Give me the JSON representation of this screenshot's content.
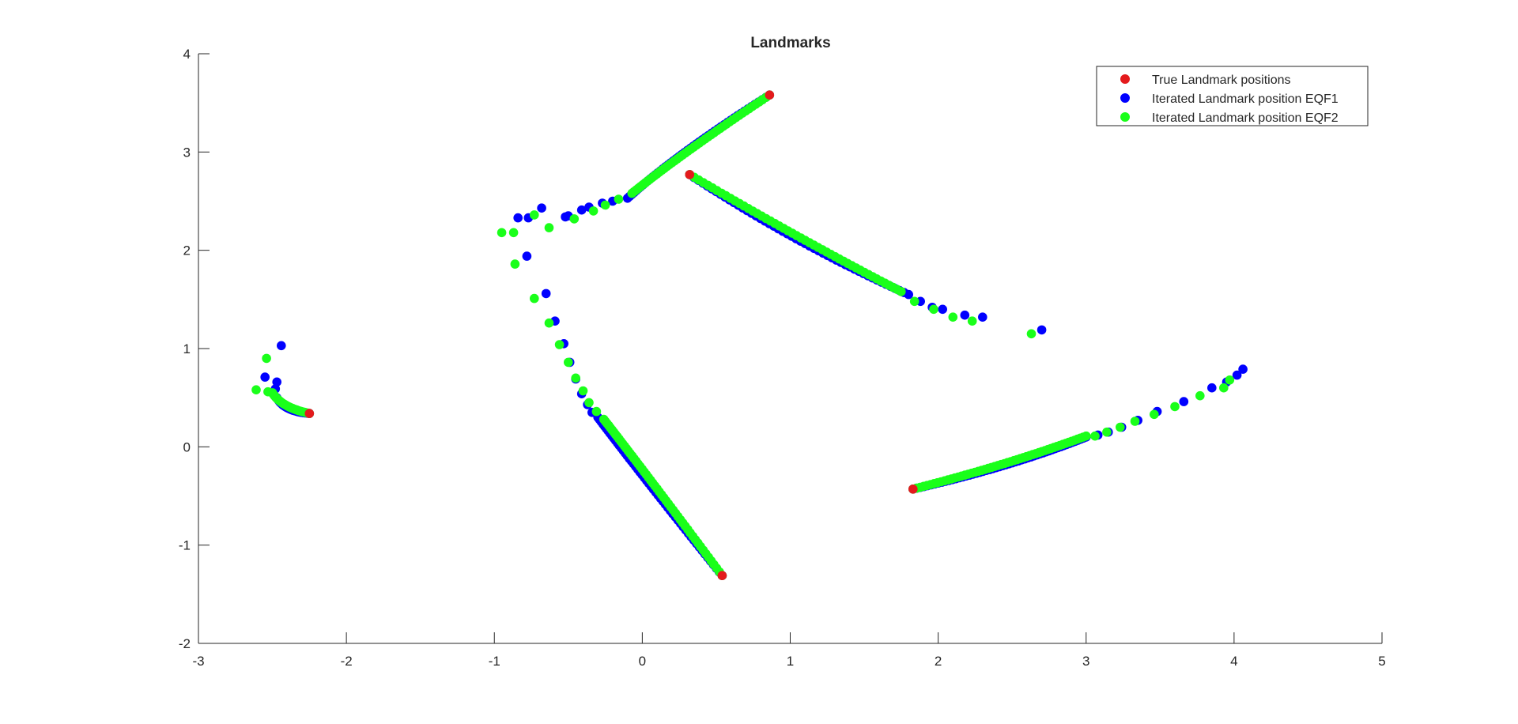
{
  "chart_data": {
    "type": "scatter",
    "title": "Landmarks",
    "xlabel": "",
    "ylabel": "",
    "xlim": [
      -3,
      5
    ],
    "ylim": [
      -2,
      4
    ],
    "x_ticks": [
      "-3",
      "-2",
      "-1",
      "0",
      "1",
      "2",
      "3",
      "4",
      "5"
    ],
    "y_ticks": [
      "-2",
      "-1",
      "0",
      "1",
      "2",
      "3",
      "4"
    ],
    "grid": false,
    "legend_position": "top-right",
    "colors": {
      "true": "#e41a1c",
      "eqf1": "#0000ff",
      "eqf2": "#1aff1a",
      "axis": "#262626"
    },
    "series": [
      {
        "key": "true",
        "name": "True Landmark positions",
        "points": [
          [
            0.86,
            3.58
          ],
          [
            0.32,
            2.77
          ],
          [
            0.54,
            -1.31
          ],
          [
            1.83,
            -0.43
          ],
          [
            -2.25,
            0.34
          ]
        ]
      },
      {
        "key": "eqf1",
        "name": "Iterated Landmark position EQF1",
        "curves": [
          {
            "from": [
              0.86,
              3.58
            ],
            "ctrl": [
              0.25,
              3.0
            ],
            "to": [
              -0.1,
              2.53
            ],
            "n": 50
          },
          {
            "from": [
              0.32,
              2.77
            ],
            "ctrl": [
              1.05,
              2.05
            ],
            "to": [
              1.8,
              1.55
            ],
            "n": 50
          },
          {
            "from": [
              0.54,
              -1.31
            ],
            "ctrl": [
              0.0,
              -0.3
            ],
            "to": [
              -0.3,
              0.3
            ],
            "n": 55
          },
          {
            "from": [
              1.83,
              -0.43
            ],
            "ctrl": [
              2.5,
              -0.2
            ],
            "to": [
              3.0,
              0.1
            ],
            "n": 55
          },
          {
            "from": [
              -2.25,
              0.34
            ],
            "ctrl": [
              -2.42,
              0.36
            ],
            "to": [
              -2.47,
              0.5
            ],
            "n": 25
          }
        ],
        "points": [
          [
            -0.5,
            2.35
          ],
          [
            -0.41,
            2.41
          ],
          [
            -0.36,
            2.44
          ],
          [
            -0.27,
            2.48
          ],
          [
            -0.2,
            2.5
          ],
          [
            -0.52,
            2.34
          ],
          [
            -0.68,
            2.43
          ],
          [
            -0.77,
            2.33
          ],
          [
            -0.84,
            2.33
          ],
          [
            -0.78,
            1.94
          ],
          [
            -0.65,
            1.56
          ],
          [
            -0.59,
            1.28
          ],
          [
            -0.53,
            1.05
          ],
          [
            -0.49,
            0.86
          ],
          [
            -0.45,
            0.69
          ],
          [
            -0.41,
            0.54
          ],
          [
            -0.37,
            0.43
          ],
          [
            -0.34,
            0.35
          ],
          [
            1.88,
            1.48
          ],
          [
            1.96,
            1.42
          ],
          [
            2.03,
            1.4
          ],
          [
            2.18,
            1.34
          ],
          [
            2.3,
            1.32
          ],
          [
            2.7,
            1.19
          ],
          [
            3.08,
            0.12
          ],
          [
            3.15,
            0.15
          ],
          [
            3.24,
            0.2
          ],
          [
            3.35,
            0.27
          ],
          [
            3.48,
            0.36
          ],
          [
            3.66,
            0.46
          ],
          [
            3.85,
            0.6
          ],
          [
            3.95,
            0.66
          ],
          [
            4.02,
            0.73
          ],
          [
            4.06,
            0.79
          ],
          [
            -2.44,
            1.03
          ],
          [
            -2.47,
            0.66
          ],
          [
            -2.48,
            0.59
          ],
          [
            -2.55,
            0.71
          ]
        ]
      },
      {
        "key": "eqf2",
        "name": "Iterated Landmark position EQF2",
        "curves": [
          {
            "from": [
              0.86,
              3.58
            ],
            "ctrl": [
              0.28,
              3.0
            ],
            "to": [
              -0.07,
              2.58
            ],
            "n": 50
          },
          {
            "from": [
              0.32,
              2.77
            ],
            "ctrl": [
              1.08,
              2.1
            ],
            "to": [
              1.75,
              1.58
            ],
            "n": 50
          },
          {
            "from": [
              0.54,
              -1.31
            ],
            "ctrl": [
              0.03,
              -0.28
            ],
            "to": [
              -0.26,
              0.28
            ],
            "n": 55
          },
          {
            "from": [
              1.83,
              -0.43
            ],
            "ctrl": [
              2.48,
              -0.18
            ],
            "to": [
              3.0,
              0.11
            ],
            "n": 55
          },
          {
            "from": [
              -2.25,
              0.34
            ],
            "ctrl": [
              -2.44,
              0.4
            ],
            "to": [
              -2.5,
              0.55
            ],
            "n": 25
          }
        ],
        "points": [
          [
            -0.46,
            2.32
          ],
          [
            -0.33,
            2.4
          ],
          [
            -0.25,
            2.46
          ],
          [
            -0.16,
            2.52
          ],
          [
            -0.63,
            2.23
          ],
          [
            -0.73,
            2.36
          ],
          [
            -0.87,
            2.18
          ],
          [
            -0.95,
            2.18
          ],
          [
            -0.86,
            1.86
          ],
          [
            -0.73,
            1.51
          ],
          [
            -0.63,
            1.26
          ],
          [
            -0.56,
            1.04
          ],
          [
            -0.5,
            0.86
          ],
          [
            -0.45,
            0.7
          ],
          [
            -0.4,
            0.57
          ],
          [
            -0.36,
            0.45
          ],
          [
            -0.31,
            0.36
          ],
          [
            1.84,
            1.48
          ],
          [
            1.97,
            1.4
          ],
          [
            2.1,
            1.32
          ],
          [
            2.23,
            1.28
          ],
          [
            2.63,
            1.15
          ],
          [
            3.06,
            0.11
          ],
          [
            3.14,
            0.15
          ],
          [
            3.23,
            0.2
          ],
          [
            3.33,
            0.26
          ],
          [
            3.46,
            0.33
          ],
          [
            3.6,
            0.41
          ],
          [
            3.77,
            0.52
          ],
          [
            3.93,
            0.6
          ],
          [
            3.97,
            0.68
          ],
          [
            -2.61,
            0.58
          ],
          [
            -2.54,
            0.9
          ],
          [
            -2.53,
            0.56
          ]
        ]
      }
    ]
  }
}
